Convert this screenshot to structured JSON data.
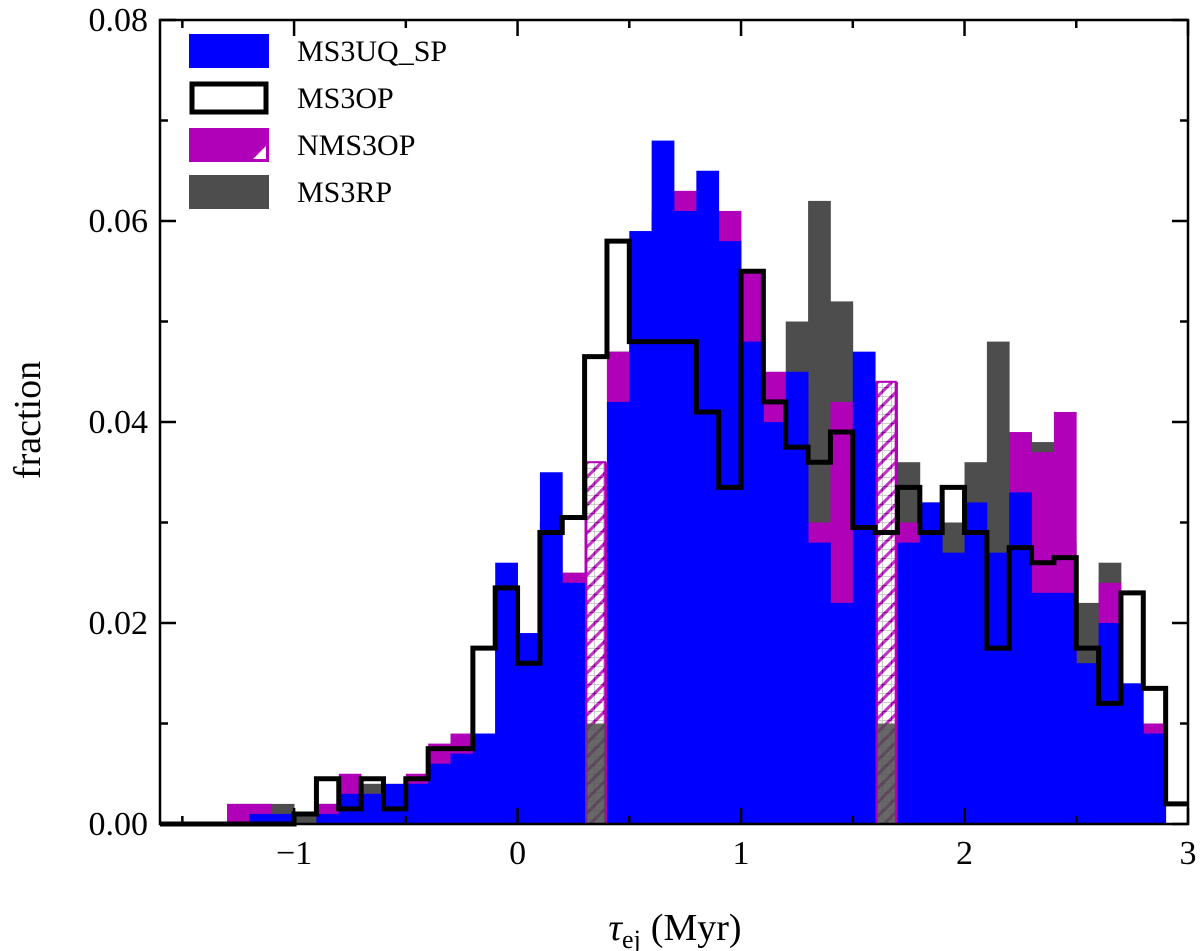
{
  "chart_data": {
    "type": "bar",
    "subtype": "overlaid histogram",
    "xlabel_symbol": "τ",
    "xlabel_subscript": "ej",
    "xlabel_unit": "(Myr)",
    "ylabel": "fraction",
    "xlim": [
      -1.6,
      3.0
    ],
    "ylim": [
      0,
      0.08
    ],
    "x_ticks": [
      -1,
      0,
      1,
      2,
      3
    ],
    "x_tick_labels": [
      "−1",
      "0",
      "1",
      "2",
      "3"
    ],
    "y_ticks": [
      0,
      0.02,
      0.04,
      0.06,
      0.08
    ],
    "y_tick_labels": [
      "0.00",
      "0.02",
      "0.04",
      "0.06",
      "0.08"
    ],
    "bin_edges": [
      -1.6,
      -1.5,
      -1.4,
      -1.3,
      -1.2,
      -1.1,
      -1.0,
      -0.9,
      -0.8,
      -0.7,
      -0.6,
      -0.5,
      -0.4,
      -0.3,
      -0.2,
      -0.1,
      0.0,
      0.1,
      0.2,
      0.3,
      0.4,
      0.5,
      0.6,
      0.7,
      0.8,
      0.9,
      1.0,
      1.1,
      1.2,
      1.3,
      1.4,
      1.5,
      1.6,
      1.7,
      1.8,
      1.9,
      2.0,
      2.1,
      2.2,
      2.3,
      2.4,
      2.5,
      2.6,
      2.7,
      2.8,
      2.9,
      3.0
    ],
    "legend_position": "top-left",
    "series": [
      {
        "name": "MS3RP",
        "style": "filled",
        "color": "#4d4d4d",
        "values": [
          0.0,
          0.0,
          0.0,
          0.002,
          0.002,
          0.002,
          0.001,
          0.002,
          0.003,
          0.004,
          0.003,
          0.004,
          0.006,
          0.008,
          0.009,
          0.02,
          0.018,
          0.03,
          0.025,
          0.035,
          0.047,
          0.058,
          0.061,
          0.061,
          0.058,
          0.055,
          0.049,
          0.04,
          0.05,
          0.062,
          0.052,
          0.045,
          0.04,
          0.036,
          0.032,
          0.03,
          0.036,
          0.048,
          0.035,
          0.038,
          0.028,
          0.022,
          0.026,
          0.01,
          0.003,
          0.0
        ]
      },
      {
        "name": "NMS3OP",
        "style": "filled",
        "color": "#b000b8",
        "values": [
          0.0,
          0.0,
          0.0,
          0.002,
          0.002,
          0.001,
          0.0,
          0.002,
          0.005,
          0.003,
          0.001,
          0.005,
          0.008,
          0.009,
          0.009,
          0.02,
          0.016,
          0.03,
          0.025,
          0.036,
          0.047,
          0.049,
          0.06,
          0.063,
          0.06,
          0.061,
          0.055,
          0.045,
          0.044,
          0.03,
          0.042,
          0.03,
          0.044,
          0.03,
          0.026,
          0.018,
          0.025,
          0.022,
          0.039,
          0.037,
          0.041,
          0.015,
          0.024,
          0.01,
          0.01,
          0.0
        ]
      },
      {
        "name": "MS3UQ_SP",
        "style": "filled",
        "color": "#0000ff",
        "values": [
          0.0,
          0.0,
          0.0,
          0.0,
          0.001,
          0.001,
          0.0,
          0.001,
          0.003,
          0.003,
          0.004,
          0.004,
          0.006,
          0.007,
          0.009,
          0.026,
          0.019,
          0.035,
          0.024,
          0.0,
          0.042,
          0.059,
          0.068,
          0.061,
          0.065,
          0.058,
          0.048,
          0.04,
          0.045,
          0.028,
          0.022,
          0.047,
          0.0,
          0.028,
          0.032,
          0.027,
          0.032,
          0.027,
          0.033,
          0.023,
          0.023,
          0.016,
          0.02,
          0.014,
          0.009,
          0.0
        ]
      },
      {
        "name": "MS3OP",
        "style": "step",
        "color": "#000000",
        "values": [
          0.0,
          0.0,
          0.0,
          0.0,
          0.0,
          0.0,
          0.001,
          0.0045,
          0.0015,
          0.0045,
          0.0015,
          0.0045,
          0.0075,
          0.0075,
          0.0175,
          0.0235,
          0.016,
          0.029,
          0.0305,
          0.0465,
          0.058,
          0.048,
          0.048,
          0.048,
          0.041,
          0.0335,
          0.055,
          0.042,
          0.0375,
          0.036,
          0.039,
          0.0295,
          0.029,
          0.0335,
          0.029,
          0.0335,
          0.029,
          0.0175,
          0.0275,
          0.026,
          0.0265,
          0.0175,
          0.012,
          0.023,
          0.0135,
          0.002
        ]
      }
    ],
    "hatched_bins": [
      {
        "bin_start": 0.3,
        "bin_end": 0.4,
        "value": 0.036
      },
      {
        "bin_start": 1.6,
        "bin_end": 1.7,
        "value": 0.044
      }
    ]
  }
}
